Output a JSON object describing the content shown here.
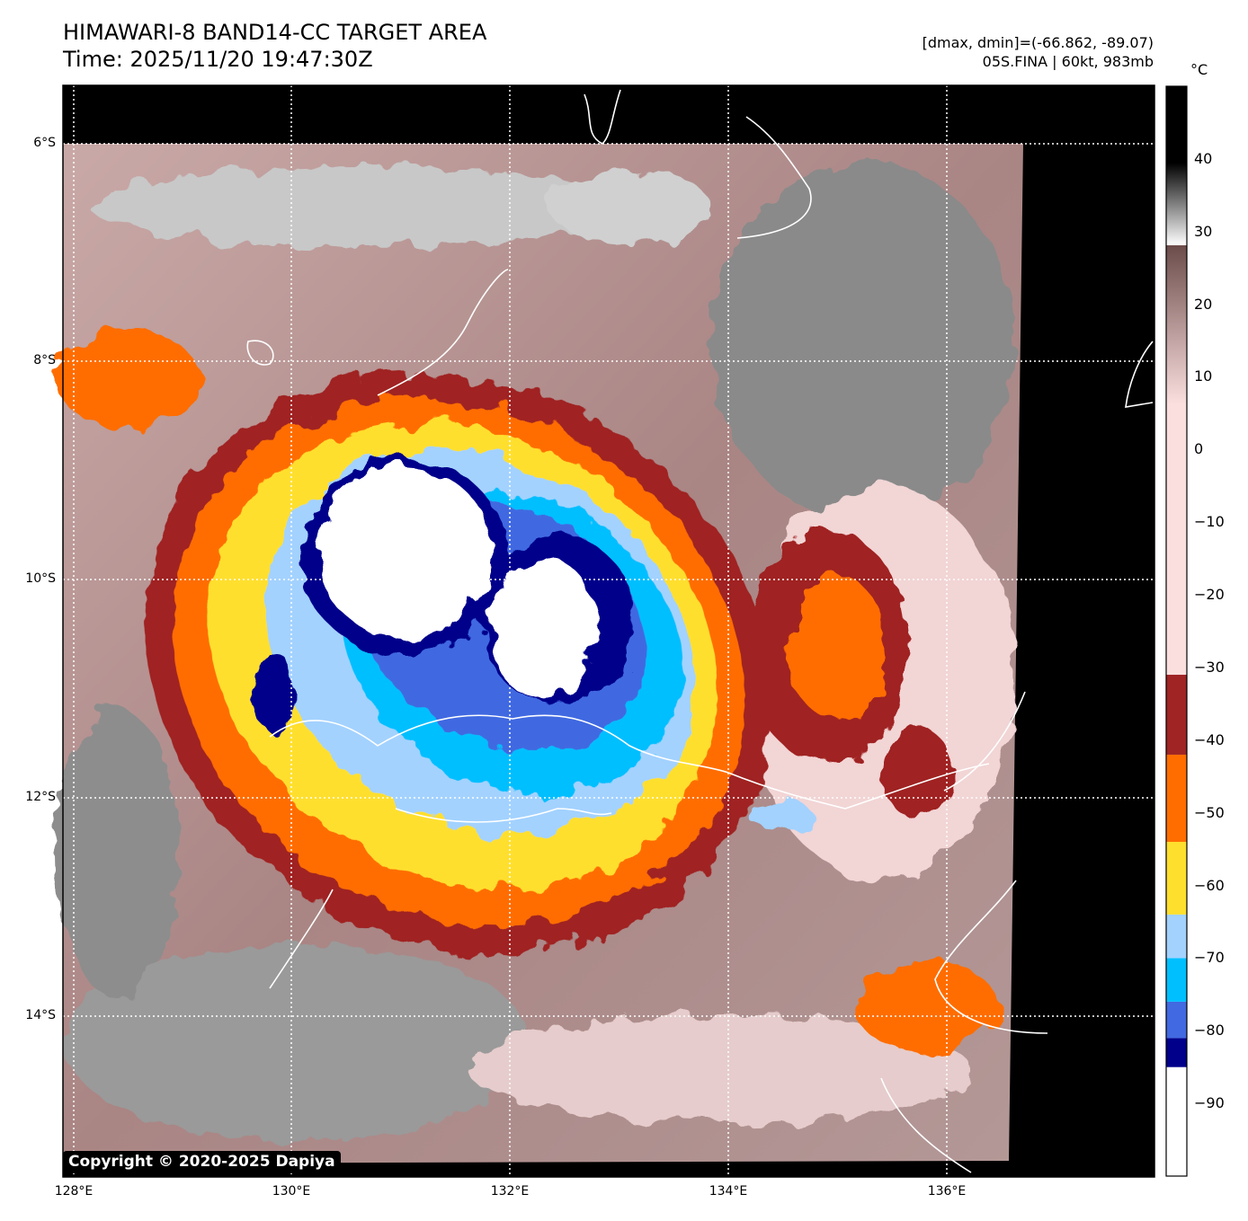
{
  "header": {
    "title": "HIMAWARI-8 BAND14-CC TARGET AREA",
    "time": "Time: 2025/11/20 19:47:30Z",
    "range_info": "[dmax, dmin]=(-66.862, -89.07)",
    "storm_info": "05S.FINA | 60kt, 983mb"
  },
  "colorbar": {
    "unit": "°C",
    "range": [
      -100,
      50
    ],
    "ticks": [
      "40",
      "30",
      "20",
      "10",
      "0",
      "−10",
      "−20",
      "−30",
      "−40",
      "−50",
      "−60",
      "−70",
      "−80",
      "−90"
    ],
    "tick_values": [
      40,
      30,
      20,
      10,
      0,
      -10,
      -20,
      -30,
      -40,
      -50,
      -60,
      -70,
      -80,
      -90
    ],
    "segments": [
      {
        "from": -100,
        "to": -85,
        "color": "#ffffff"
      },
      {
        "from": -85,
        "to": -81,
        "color": "#00008b"
      },
      {
        "from": -81,
        "to": -76,
        "color": "#4169e1"
      },
      {
        "from": -76,
        "to": -70,
        "color": "#00bfff"
      },
      {
        "from": -70,
        "to": -64,
        "color": "#a3d2ff"
      },
      {
        "from": -64,
        "to": -54,
        "color": "#ffdf2e"
      },
      {
        "from": -54,
        "to": -42,
        "color": "#ff6d00"
      },
      {
        "from": -42,
        "to": -31,
        "color": "#a02424"
      }
    ]
  },
  "axes": {
    "lat_labels": [
      "6°S",
      "8°S",
      "10°S",
      "12°S",
      "14°S"
    ],
    "lon_labels": [
      "128°E",
      "130°E",
      "132°E",
      "134°E",
      "136°E"
    ]
  },
  "copyright": "Copyright © 2020-2025 Dapiya"
}
